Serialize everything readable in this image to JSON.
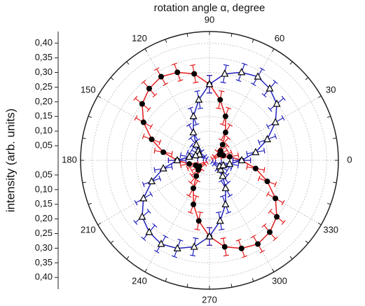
{
  "chart_data": {
    "type": "polar",
    "title": "rotation angle α, degree",
    "y_label": "intensity (arb. units)",
    "theta": [
      0,
      10,
      20,
      30,
      40,
      50,
      60,
      70,
      80,
      90,
      100,
      110,
      120,
      130,
      140,
      150,
      160,
      170,
      180,
      190,
      200,
      210,
      220,
      230,
      240,
      250,
      260,
      270,
      280,
      290,
      300,
      310,
      320,
      330,
      340,
      350
    ],
    "rlim": [
      0,
      0.44
    ],
    "rticks": [
      {
        "value": 0.05,
        "label": "0,05"
      },
      {
        "value": 0.1,
        "label": "0,10"
      },
      {
        "value": 0.15,
        "label": "0,15"
      },
      {
        "value": 0.2,
        "label": "0,20"
      },
      {
        "value": 0.25,
        "label": "0,25"
      },
      {
        "value": 0.3,
        "label": "0,30"
      },
      {
        "value": 0.35,
        "label": "0,35"
      },
      {
        "value": 0.4,
        "label": "0,40"
      }
    ],
    "thetaticks": [
      0,
      30,
      60,
      90,
      120,
      150,
      180,
      210,
      240,
      270,
      300,
      330
    ],
    "grid": true,
    "series": [
      {
        "color": "#e31a1c",
        "marker": "circle",
        "error": 0.03,
        "values": [
          0.11,
          0.07,
          0.05,
          0.04,
          0.05,
          0.07,
          0.11,
          0.16,
          0.21,
          0.26,
          0.3,
          0.32,
          0.33,
          0.32,
          0.3,
          0.26,
          0.21,
          0.16,
          0.11,
          0.07,
          0.05,
          0.04,
          0.05,
          0.07,
          0.11,
          0.16,
          0.21,
          0.26,
          0.3,
          0.32,
          0.33,
          0.32,
          0.3,
          0.26,
          0.21,
          0.16
        ]
      },
      {
        "color": "#1f1fbf",
        "marker": "triangle",
        "error": 0.03,
        "values": [
          0.11,
          0.16,
          0.21,
          0.26,
          0.3,
          0.32,
          0.33,
          0.32,
          0.3,
          0.26,
          0.21,
          0.16,
          0.11,
          0.07,
          0.05,
          0.04,
          0.05,
          0.07,
          0.11,
          0.16,
          0.21,
          0.26,
          0.3,
          0.32,
          0.33,
          0.32,
          0.3,
          0.26,
          0.21,
          0.16,
          0.11,
          0.07,
          0.05,
          0.04,
          0.05,
          0.07
        ]
      }
    ]
  }
}
